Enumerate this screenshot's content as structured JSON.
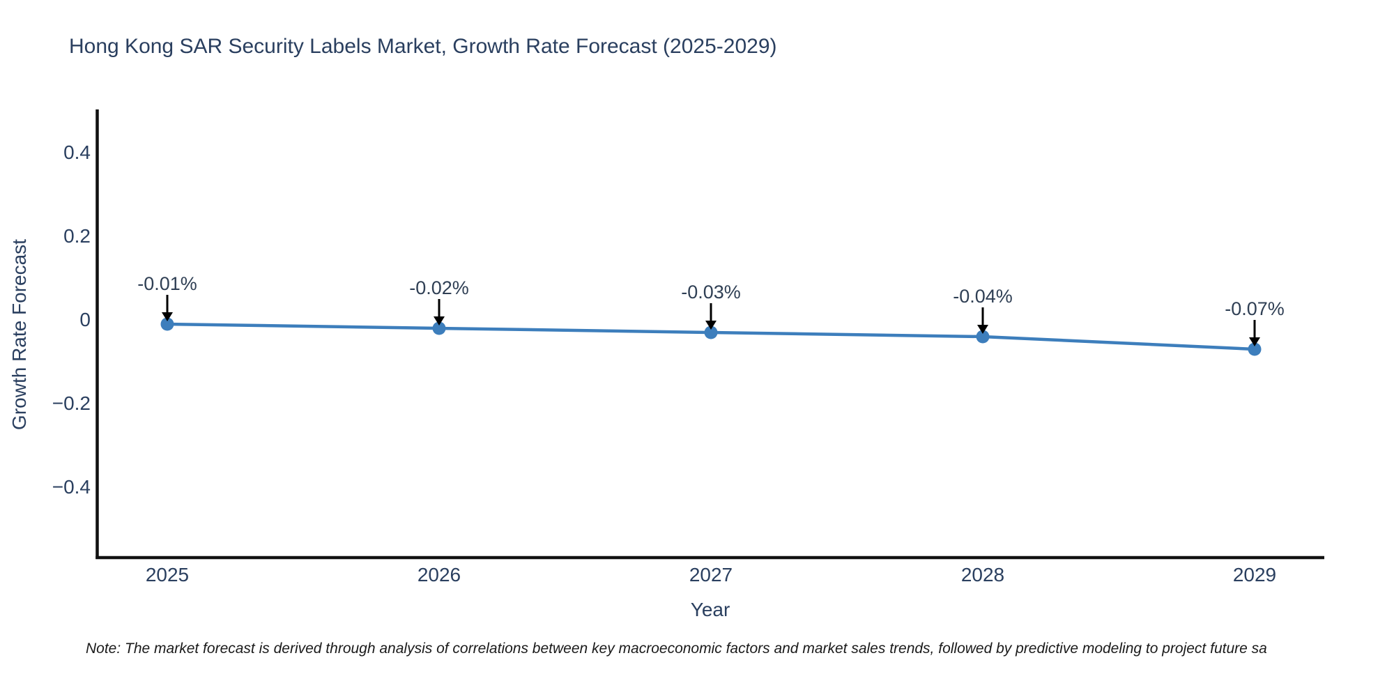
{
  "page": {
    "background": "#ffffff"
  },
  "chart_data": {
    "type": "line",
    "title": "Hong Kong SAR Security Labels Market, Growth Rate Forecast (2025-2029)",
    "xlabel": "Year",
    "ylabel": "Growth Rate Forecast",
    "x": [
      2025,
      2026,
      2027,
      2028,
      2029
    ],
    "values": [
      -0.01,
      -0.02,
      -0.03,
      -0.04,
      -0.07
    ],
    "point_labels": [
      "-0.01%",
      "-0.02%",
      "-0.03%",
      "-0.04%",
      "-0.07%"
    ],
    "xticks": {
      "values": [
        2025,
        2026,
        2027,
        2028,
        2029
      ],
      "labels": [
        "2025",
        "2026",
        "2027",
        "2028",
        "2029"
      ]
    },
    "yticks": {
      "values": [
        0.4,
        0.2,
        0,
        -0.2,
        -0.4
      ],
      "labels": [
        "0.4",
        "0.2",
        "0",
        "−0.2",
        "−0.4"
      ]
    },
    "xlim": [
      2024.74,
      2029.26
    ],
    "ylim": [
      -0.57,
      0.5
    ],
    "grid": false,
    "legend": {
      "visible": false
    },
    "colors": {
      "line": "#3d7ebc",
      "marker": "#3d7ebc",
      "axis": "#111111",
      "text": "#2a3f5f",
      "annotation_text": "#2f3f54",
      "arrow": "#000000"
    }
  },
  "footnote": {
    "text": "Note: The market forecast is derived through analysis of correlations between key macroeconomic factors and market sales trends, followed by predictive modeling to project future sa"
  }
}
